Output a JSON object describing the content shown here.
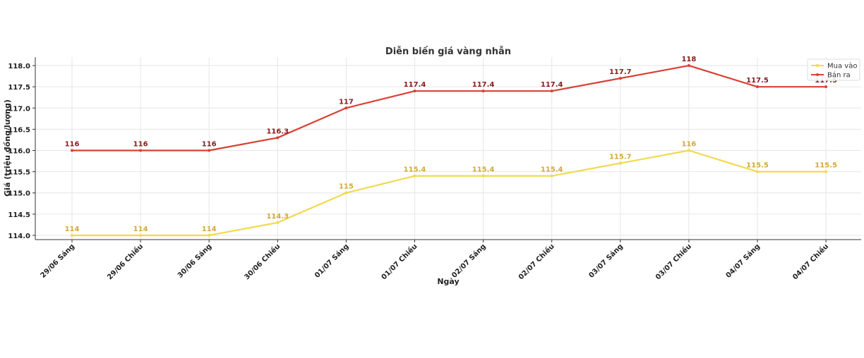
{
  "chart_data": {
    "type": "line",
    "title": "Diễn biến giá vàng nhẫn",
    "xlabel": "Ngày",
    "ylabel": "Giá (triệu đồng/lượng)",
    "categories": [
      "29/06 Sáng",
      "29/06 Chiều",
      "30/06 Sáng",
      "30/06 Chiều",
      "01/07 Sáng",
      "01/07 Chiều",
      "02/07 Sáng",
      "02/07 Chiều",
      "03/07 Sáng",
      "03/07 Chiều",
      "04/07 Sáng",
      "04/07 Chiều"
    ],
    "ylim": [
      113.9,
      118.2
    ],
    "yticks": [
      "114.0",
      "114.5",
      "115.0",
      "115.5",
      "116.0",
      "116.5",
      "117.0",
      "117.5",
      "118.0"
    ],
    "grid": true,
    "legend_position": "top-right",
    "series": [
      {
        "name": "Mua vào",
        "color": "#f2d94e",
        "label_color": "#d4a838",
        "values": [
          114,
          114,
          114,
          114.3,
          115,
          115.4,
          115.4,
          115.4,
          115.7,
          116,
          115.5,
          115.5
        ],
        "labels": [
          "114",
          "114",
          "114",
          "114.3",
          "115",
          "115.4",
          "115.4",
          "115.4",
          "115.7",
          "116",
          "115.5",
          "115.5"
        ]
      },
      {
        "name": "Bán ra",
        "color": "#d94135",
        "label_color": "#8b1a1a",
        "values": [
          116,
          116,
          116,
          116.3,
          117,
          117.4,
          117.4,
          117.4,
          117.7,
          118,
          117.5,
          117.5
        ],
        "labels": [
          "116",
          "116",
          "116",
          "116.3",
          "117",
          "117.4",
          "117.4",
          "117.4",
          "117.7",
          "118",
          "117.5",
          "117.5"
        ]
      }
    ]
  }
}
